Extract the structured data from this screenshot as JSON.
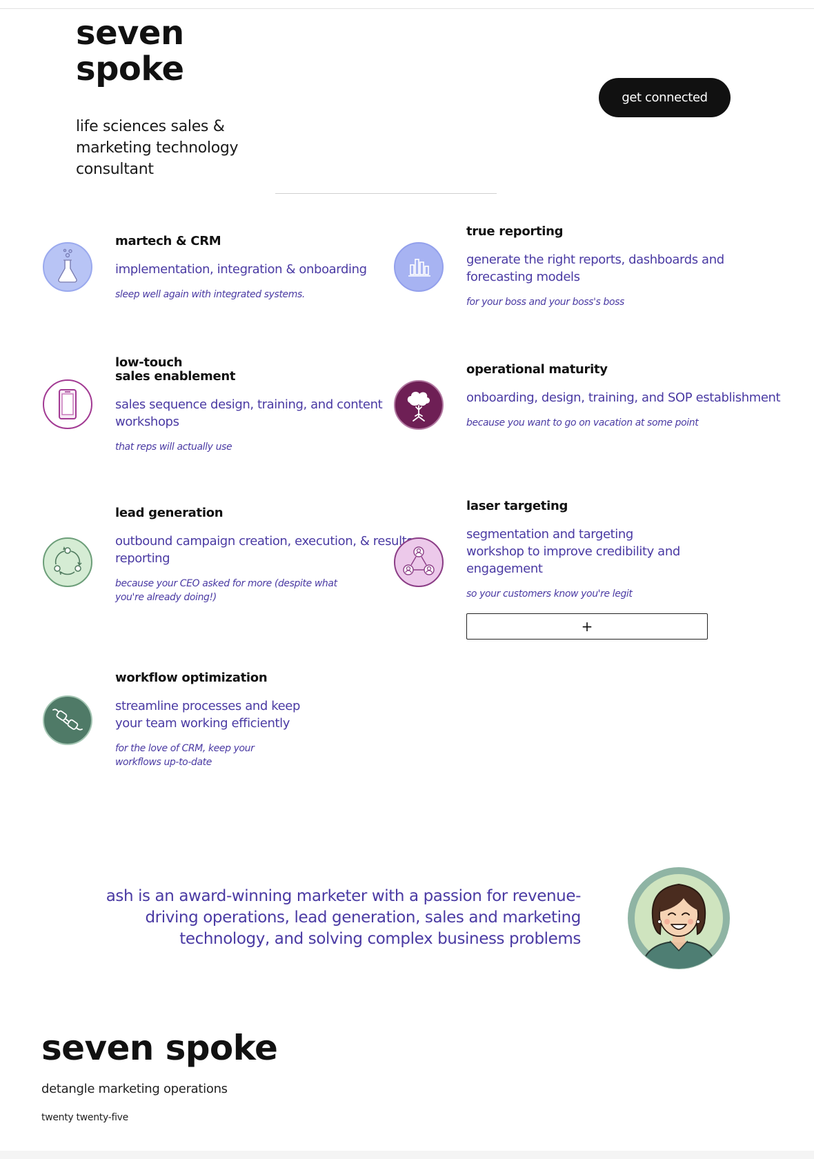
{
  "header": {
    "brand_line1": "seven",
    "brand_line2": "spoke",
    "tagline": "life sciences sales & marketing technology consultant",
    "cta_label": "get connected"
  },
  "services": [
    {
      "title": "martech & CRM",
      "description": "implementation, integration & onboarding",
      "note": "sleep well again with integrated systems.",
      "icon": "flask-icon",
      "icon_bg": "#b8c4f5"
    },
    {
      "title": "true reporting",
      "description": "generate the right reports, dashboards and forecasting models",
      "note": "for your boss and your boss's boss",
      "icon": "bar-chart-icon",
      "icon_bg": "#a7b3f2"
    },
    {
      "title_line1": "low-touch",
      "title_line2": "sales enablement",
      "description": "sales sequence design, training, and content workshops",
      "note": "that reps will actually use",
      "icon": "mobile-phone-icon",
      "icon_bg": "#ffffff"
    },
    {
      "title": "operational maturity",
      "description": "onboarding, design, training, and SOP establishment",
      "note": "because you want to go on vacation at some point",
      "icon": "tree-icon",
      "icon_bg": "#6e1f55"
    },
    {
      "title": "lead generation",
      "description": "outbound campaign creation, execution, & results reporting",
      "note": "because your CEO asked for more (despite what you're already doing!)",
      "icon": "cycle-arrows-icon",
      "icon_bg": "#d5ecd4"
    },
    {
      "title": "laser targeting",
      "description": "segmentation and targeting workshop to improve credibility and engagement",
      "note": "so your customers know you're legit",
      "icon": "people-network-icon",
      "icon_bg": "#ecc9ea"
    },
    {
      "title": "workflow optimization",
      "description": "streamline processes and keep your team working efficiently",
      "note": "for the love of CRM, keep your workflows up-to-date",
      "icon": "plug-connector-icon",
      "icon_bg": "#4f7a67"
    }
  ],
  "expand_button_label": "+",
  "bio": {
    "text": "ash is an award-winning marketer with a passion for revenue-driving operations, lead generation, sales and marketing technology, and solving complex business problems",
    "avatar_icon": "avatar-illustration"
  },
  "footer": {
    "brand": "seven spoke",
    "tagline": "detangle marketing operations",
    "year": "twenty twenty-five"
  },
  "colors": {
    "accent_text": "#4a3aa3",
    "cta_bg": "#111111"
  }
}
